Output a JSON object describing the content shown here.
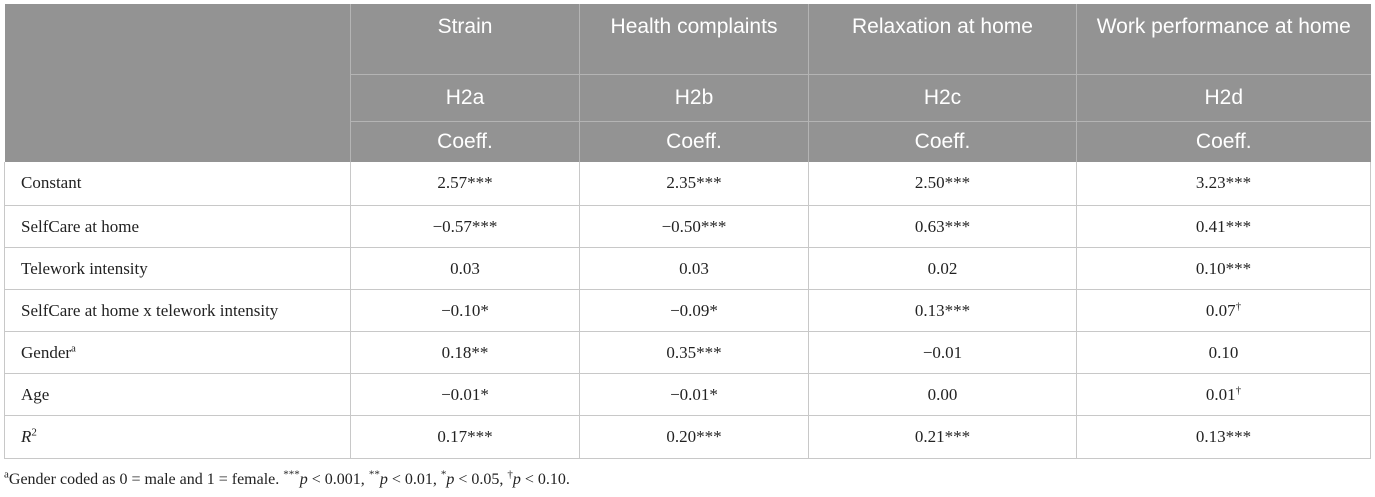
{
  "table": {
    "columns": [
      "Strain",
      "Health complaints",
      "Relaxation at home",
      "Work performance at home"
    ],
    "hypotheses": [
      "H2a",
      "H2b",
      "H2c",
      "H2d"
    ],
    "coeff_label": "Coeff.",
    "rows": [
      {
        "label": "Constant",
        "label_sup": "",
        "label_italic": false,
        "values": [
          "2.57***",
          "2.35***",
          "2.50***",
          "3.23***"
        ],
        "value_sups": [
          "",
          "",
          "",
          ""
        ]
      },
      {
        "label": "SelfCare at home",
        "label_sup": "",
        "label_italic": false,
        "values": [
          "−0.57***",
          "−0.50***",
          "0.63***",
          "0.41***"
        ],
        "value_sups": [
          "",
          "",
          "",
          ""
        ]
      },
      {
        "label": "Telework intensity",
        "label_sup": "",
        "label_italic": false,
        "values": [
          "0.03",
          "0.03",
          "0.02",
          "0.10***"
        ],
        "value_sups": [
          "",
          "",
          "",
          ""
        ]
      },
      {
        "label": "SelfCare at home x telework intensity",
        "label_sup": "",
        "label_italic": false,
        "values": [
          "−0.10*",
          "−0.09*",
          "0.13***",
          "0.07"
        ],
        "value_sups": [
          "",
          "",
          "",
          "†"
        ]
      },
      {
        "label": "Gender",
        "label_sup": "a",
        "label_italic": false,
        "values": [
          "0.18**",
          "0.35***",
          "−0.01",
          "0.10"
        ],
        "value_sups": [
          "",
          "",
          "",
          ""
        ]
      },
      {
        "label": "Age",
        "label_sup": "",
        "label_italic": false,
        "values": [
          "−0.01*",
          "−0.01*",
          "0.00",
          "0.01"
        ],
        "value_sups": [
          "",
          "",
          "",
          "†"
        ]
      },
      {
        "label": "R",
        "label_sup": "2",
        "label_italic": true,
        "values": [
          "0.17***",
          "0.20***",
          "0.21***",
          "0.13***"
        ],
        "value_sups": [
          "",
          "",
          "",
          ""
        ]
      }
    ]
  },
  "footnote": {
    "marker": "a",
    "text_1": "Gender coded as 0 = male and 1 = female. ",
    "stars_3": "***",
    "p": "p",
    "t1": " < 0.001, ",
    "stars_2": "**",
    "t2": " < 0.01, ",
    "stars_1": "*",
    "t3": " < 0.05, ",
    "dagger": "†",
    "t4": " < 0.10."
  }
}
